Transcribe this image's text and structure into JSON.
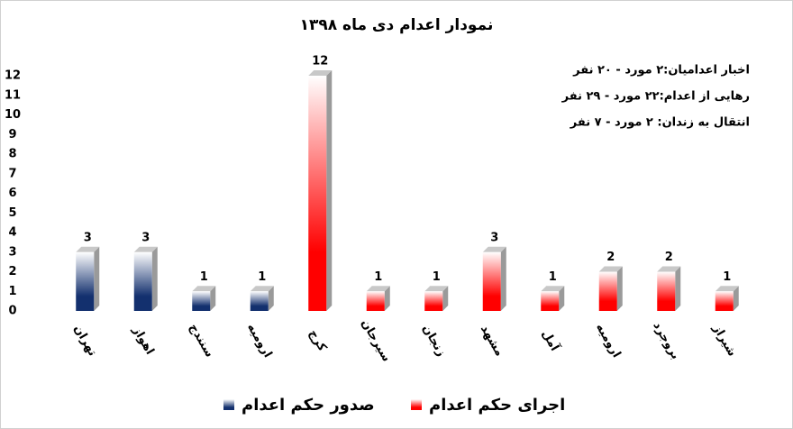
{
  "chart_data": {
    "type": "bar",
    "title": "نمودار اعدام دی ماه ۱۳۹۸",
    "annotations": [
      "اخبار اعدامیان:۲ مورد - ۲۰ نفر",
      "رهایی از اعدام:۲۲ مورد - ۲۹ نفر",
      "انتقال به زندان: ۲ مورد - ۷ نفر"
    ],
    "categories": [
      "تهران",
      "اهواز",
      "سنندج",
      "ارومیه",
      "کرج",
      "سیرجان",
      "زنجان",
      "مشهد",
      "آمل",
      "ارومیه",
      "بروجرد",
      "شیراز"
    ],
    "series": [
      {
        "name": "صدور حکم اعدام",
        "color": "#13306e",
        "values": [
          3,
          3,
          1,
          1,
          null,
          null,
          null,
          null,
          null,
          null,
          null,
          null
        ]
      },
      {
        "name": "اجرای حکم اعدام",
        "color": "#ff0000",
        "values": [
          null,
          null,
          null,
          null,
          12,
          1,
          1,
          3,
          1,
          2,
          2,
          1
        ]
      }
    ],
    "ylim": [
      0,
      12
    ],
    "yticks": [
      0,
      1,
      2,
      3,
      4,
      5,
      6,
      7,
      8,
      9,
      10,
      11,
      12
    ],
    "grid": false
  }
}
